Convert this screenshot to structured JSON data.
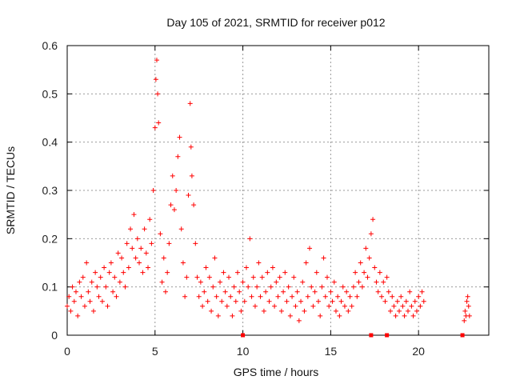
{
  "chart_data": {
    "type": "scatter",
    "title": "Day 105 of 2021, SRMTID for receiver p012",
    "xlabel": "GPS time / hours",
    "ylabel": "SRMTID / TECUs",
    "xlim": [
      0,
      24
    ],
    "ylim": [
      0,
      0.6
    ],
    "x_ticks": [
      0,
      5,
      10,
      15,
      20
    ],
    "y_ticks": [
      0,
      0.1,
      0.2,
      0.3,
      0.4,
      0.5,
      0.6
    ],
    "x_tick_labels": [
      "0",
      "5",
      "10",
      "15",
      "20"
    ],
    "y_tick_labels": [
      "0",
      "0.1",
      "0.2",
      "0.3",
      "0.4",
      "0.5",
      "0.6"
    ],
    "grid": true,
    "marker": "plus",
    "color": "#ff0000",
    "series": [
      {
        "name": "SRMTID",
        "points": [
          [
            0.0,
            0.06
          ],
          [
            0.1,
            0.08
          ],
          [
            0.2,
            0.05
          ],
          [
            0.3,
            0.1
          ],
          [
            0.4,
            0.07
          ],
          [
            0.5,
            0.09
          ],
          [
            0.6,
            0.04
          ],
          [
            0.7,
            0.11
          ],
          [
            0.8,
            0.08
          ],
          [
            0.9,
            0.12
          ],
          [
            1.0,
            0.06
          ],
          [
            1.1,
            0.15
          ],
          [
            1.2,
            0.09
          ],
          [
            1.3,
            0.07
          ],
          [
            1.4,
            0.11
          ],
          [
            1.5,
            0.05
          ],
          [
            1.6,
            0.13
          ],
          [
            1.7,
            0.1
          ],
          [
            1.8,
            0.08
          ],
          [
            1.9,
            0.12
          ],
          [
            2.0,
            0.07
          ],
          [
            2.1,
            0.14
          ],
          [
            2.2,
            0.1
          ],
          [
            2.3,
            0.06
          ],
          [
            2.4,
            0.13
          ],
          [
            2.5,
            0.15
          ],
          [
            2.6,
            0.09
          ],
          [
            2.7,
            0.12
          ],
          [
            2.8,
            0.08
          ],
          [
            2.9,
            0.17
          ],
          [
            3.0,
            0.11
          ],
          [
            3.1,
            0.16
          ],
          [
            3.2,
            0.13
          ],
          [
            3.3,
            0.1
          ],
          [
            3.4,
            0.19
          ],
          [
            3.5,
            0.14
          ],
          [
            3.6,
            0.22
          ],
          [
            3.7,
            0.18
          ],
          [
            3.8,
            0.25
          ],
          [
            3.9,
            0.16
          ],
          [
            4.0,
            0.2
          ],
          [
            4.1,
            0.15
          ],
          [
            4.2,
            0.18
          ],
          [
            4.3,
            0.13
          ],
          [
            4.4,
            0.22
          ],
          [
            4.5,
            0.17
          ],
          [
            4.6,
            0.14
          ],
          [
            4.7,
            0.24
          ],
          [
            4.8,
            0.19
          ],
          [
            4.9,
            0.3
          ],
          [
            5.0,
            0.43
          ],
          [
            5.05,
            0.53
          ],
          [
            5.1,
            0.57
          ],
          [
            5.15,
            0.5
          ],
          [
            5.2,
            0.44
          ],
          [
            5.3,
            0.21
          ],
          [
            5.4,
            0.11
          ],
          [
            5.5,
            0.16
          ],
          [
            5.6,
            0.09
          ],
          [
            5.7,
            0.13
          ],
          [
            5.8,
            0.19
          ],
          [
            5.9,
            0.27
          ],
          [
            6.0,
            0.33
          ],
          [
            6.1,
            0.26
          ],
          [
            6.2,
            0.3
          ],
          [
            6.3,
            0.37
          ],
          [
            6.4,
            0.41
          ],
          [
            6.5,
            0.22
          ],
          [
            6.6,
            0.15
          ],
          [
            6.7,
            0.08
          ],
          [
            6.8,
            0.12
          ],
          [
            6.9,
            0.29
          ],
          [
            7.0,
            0.48
          ],
          [
            7.05,
            0.39
          ],
          [
            7.1,
            0.33
          ],
          [
            7.2,
            0.27
          ],
          [
            7.3,
            0.19
          ],
          [
            7.4,
            0.12
          ],
          [
            7.5,
            0.08
          ],
          [
            7.6,
            0.11
          ],
          [
            7.7,
            0.06
          ],
          [
            7.8,
            0.09
          ],
          [
            7.9,
            0.14
          ],
          [
            8.0,
            0.07
          ],
          [
            8.1,
            0.12
          ],
          [
            8.2,
            0.05
          ],
          [
            8.3,
            0.1
          ],
          [
            8.4,
            0.16
          ],
          [
            8.5,
            0.08
          ],
          [
            8.6,
            0.04
          ],
          [
            8.7,
            0.11
          ],
          [
            8.8,
            0.07
          ],
          [
            8.9,
            0.13
          ],
          [
            9.0,
            0.09
          ],
          [
            9.1,
            0.06
          ],
          [
            9.2,
            0.12
          ],
          [
            9.3,
            0.08
          ],
          [
            9.4,
            0.04
          ],
          [
            9.5,
            0.1
          ],
          [
            9.6,
            0.07
          ],
          [
            9.7,
            0.13
          ],
          [
            9.8,
            0.09
          ],
          [
            9.9,
            0.05
          ],
          [
            10.0,
            0.11
          ],
          [
            10.1,
            0.07
          ],
          [
            10.2,
            0.14
          ],
          [
            10.3,
            0.1
          ],
          [
            10.4,
            0.2
          ],
          [
            10.5,
            0.08
          ],
          [
            10.6,
            0.12
          ],
          [
            10.7,
            0.06
          ],
          [
            10.8,
            0.1
          ],
          [
            10.9,
            0.15
          ],
          [
            11.0,
            0.08
          ],
          [
            11.1,
            0.12
          ],
          [
            11.2,
            0.05
          ],
          [
            11.3,
            0.09
          ],
          [
            11.4,
            0.13
          ],
          [
            11.5,
            0.07
          ],
          [
            11.6,
            0.1
          ],
          [
            11.7,
            0.14
          ],
          [
            11.8,
            0.06
          ],
          [
            11.9,
            0.11
          ],
          [
            12.0,
            0.08
          ],
          [
            12.1,
            0.12
          ],
          [
            12.2,
            0.05
          ],
          [
            12.3,
            0.09
          ],
          [
            12.4,
            0.13
          ],
          [
            12.5,
            0.07
          ],
          [
            12.6,
            0.1
          ],
          [
            12.7,
            0.04
          ],
          [
            12.8,
            0.08
          ],
          [
            12.9,
            0.12
          ],
          [
            13.0,
            0.06
          ],
          [
            13.1,
            0.09
          ],
          [
            13.2,
            0.03
          ],
          [
            13.3,
            0.07
          ],
          [
            13.4,
            0.11
          ],
          [
            13.5,
            0.05
          ],
          [
            13.6,
            0.15
          ],
          [
            13.7,
            0.08
          ],
          [
            13.8,
            0.18
          ],
          [
            13.9,
            0.1
          ],
          [
            14.0,
            0.06
          ],
          [
            14.1,
            0.09
          ],
          [
            14.2,
            0.13
          ],
          [
            14.3,
            0.07
          ],
          [
            14.4,
            0.04
          ],
          [
            14.5,
            0.1
          ],
          [
            14.6,
            0.16
          ],
          [
            14.7,
            0.08
          ],
          [
            14.8,
            0.12
          ],
          [
            14.9,
            0.06
          ],
          [
            15.0,
            0.09
          ],
          [
            15.1,
            0.07
          ],
          [
            15.2,
            0.11
          ],
          [
            15.3,
            0.05
          ],
          [
            15.4,
            0.08
          ],
          [
            15.5,
            0.04
          ],
          [
            15.6,
            0.07
          ],
          [
            15.7,
            0.1
          ],
          [
            15.8,
            0.06
          ],
          [
            15.9,
            0.09
          ],
          [
            16.0,
            0.05
          ],
          [
            16.1,
            0.08
          ],
          [
            16.2,
            0.06
          ],
          [
            16.3,
            0.1
          ],
          [
            16.4,
            0.13
          ],
          [
            16.5,
            0.08
          ],
          [
            16.6,
            0.11
          ],
          [
            16.7,
            0.15
          ],
          [
            16.8,
            0.1
          ],
          [
            16.9,
            0.13
          ],
          [
            17.0,
            0.18
          ],
          [
            17.1,
            0.12
          ],
          [
            17.2,
            0.16
          ],
          [
            17.3,
            0.21
          ],
          [
            17.4,
            0.24
          ],
          [
            17.5,
            0.14
          ],
          [
            17.6,
            0.11
          ],
          [
            17.7,
            0.09
          ],
          [
            17.8,
            0.13
          ],
          [
            17.9,
            0.08
          ],
          [
            18.0,
            0.11
          ],
          [
            18.1,
            0.07
          ],
          [
            18.2,
            0.12
          ],
          [
            18.3,
            0.09
          ],
          [
            18.4,
            0.05
          ],
          [
            18.5,
            0.08
          ],
          [
            18.6,
            0.06
          ],
          [
            18.7,
            0.04
          ],
          [
            18.8,
            0.07
          ],
          [
            18.9,
            0.05
          ],
          [
            19.0,
            0.08
          ],
          [
            19.1,
            0.06
          ],
          [
            19.2,
            0.04
          ],
          [
            19.3,
            0.07
          ],
          [
            19.4,
            0.05
          ],
          [
            19.5,
            0.09
          ],
          [
            19.6,
            0.06
          ],
          [
            19.7,
            0.04
          ],
          [
            19.8,
            0.07
          ],
          [
            19.9,
            0.05
          ],
          [
            20.0,
            0.08
          ],
          [
            20.1,
            0.06
          ],
          [
            20.2,
            0.09
          ],
          [
            20.3,
            0.07
          ],
          [
            22.6,
            0.03
          ],
          [
            22.65,
            0.05
          ],
          [
            22.7,
            0.04
          ],
          [
            22.75,
            0.07
          ],
          [
            22.8,
            0.08
          ],
          [
            22.85,
            0.06
          ],
          [
            22.9,
            0.04
          ]
        ]
      }
    ],
    "zero_markers_x": [
      10.0,
      17.3,
      18.2,
      22.5
    ]
  }
}
